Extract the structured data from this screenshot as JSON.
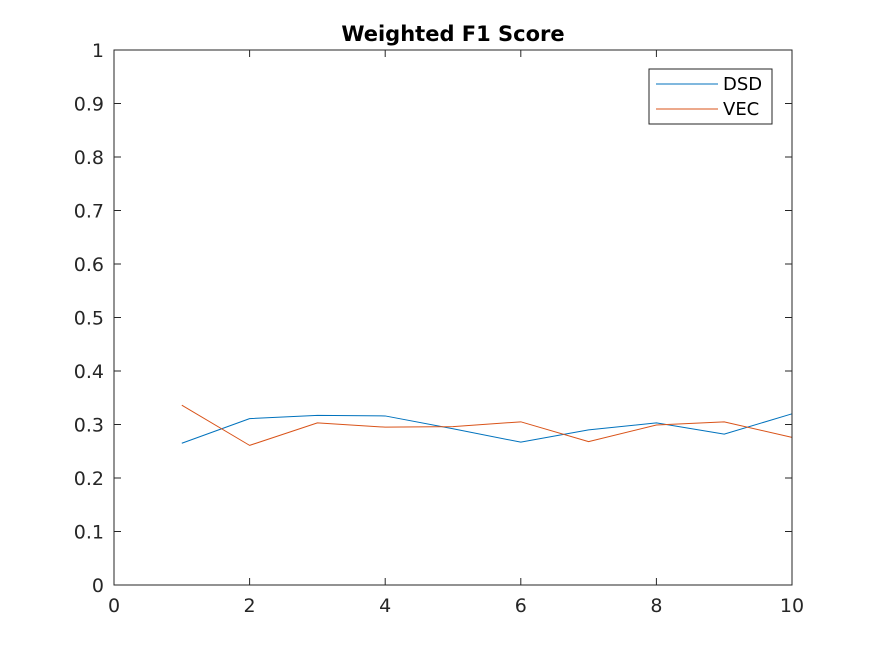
{
  "chart_data": {
    "type": "line",
    "title": "Weighted F1 Score",
    "xlabel": "",
    "ylabel": "",
    "xlim": [
      0,
      10
    ],
    "ylim": [
      0,
      1
    ],
    "xticks": [
      0,
      2,
      4,
      6,
      8,
      10
    ],
    "xtick_labels": [
      "0",
      "2",
      "4",
      "6",
      "8",
      "10"
    ],
    "yticks": [
      0,
      0.1,
      0.2,
      0.3,
      0.4,
      0.5,
      0.6,
      0.7,
      0.8,
      0.9,
      1
    ],
    "ytick_labels": [
      "0",
      "0.1",
      "0.2",
      "0.3",
      "0.4",
      "0.5",
      "0.6",
      "0.7",
      "0.8",
      "0.9",
      "1"
    ],
    "grid": false,
    "legend_position": "top-right",
    "x": [
      1,
      2,
      3,
      4,
      5,
      6,
      7,
      8,
      9,
      10
    ],
    "series": [
      {
        "name": "DSD",
        "color": "#0072BD",
        "values": [
          0.265,
          0.311,
          0.317,
          0.316,
          0.292,
          0.267,
          0.29,
          0.303,
          0.282,
          0.32
        ]
      },
      {
        "name": "VEC",
        "color": "#D95319",
        "values": [
          0.336,
          0.261,
          0.303,
          0.295,
          0.296,
          0.305,
          0.268,
          0.299,
          0.305,
          0.276
        ]
      }
    ]
  }
}
